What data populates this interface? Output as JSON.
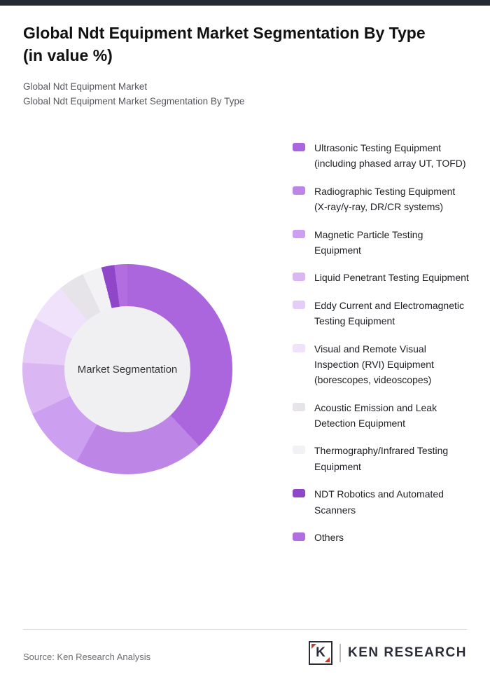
{
  "header": {
    "title_line1": "Global Ndt Equipment Market Segmentation By Type",
    "title_line2": "(in value %)",
    "subtitle1": "Global Ndt Equipment Market",
    "subtitle2": "Global Ndt Equipment Market Segmentation By Type"
  },
  "chart_data": {
    "type": "pie",
    "donut": true,
    "title": "Global Ndt Equipment Market Segmentation By Type (in value %)",
    "center_label": "Market Segmentation",
    "legend_position": "right",
    "start_angle_deg": 0,
    "categories": [
      "Ultrasonic Testing Equipment (including phased array UT, TOFD)",
      "Radiographic Testing Equipment (X-ray/γ-ray, DR/CR systems)",
      "Magnetic Particle Testing Equipment",
      "Liquid Penetrant Testing Equipment",
      "Eddy Current and Electromagnetic Testing Equipment",
      "Visual and Remote Visual Inspection (RVI) Equipment (borescopes, videoscopes)",
      "Acoustic Emission and Leak Detection Equipment",
      "Thermography/Infrared Testing Equipment",
      "NDT Robotics and Automated Scanners",
      "Others"
    ],
    "values": [
      38,
      20,
      10,
      8,
      7,
      6,
      4,
      3,
      2,
      2
    ],
    "colors": [
      "#ab66dd",
      "#bd85e6",
      "#cc9ff0",
      "#dab7f3",
      "#e6cdf7",
      "#f0e2fa",
      "#e6e4e9",
      "#f2f1f4",
      "#9046c8",
      "#b26ede"
    ]
  },
  "footer": {
    "source": "Source: Ken Research Analysis",
    "logo_letter": "K",
    "logo_text": "KEN RESEARCH"
  }
}
